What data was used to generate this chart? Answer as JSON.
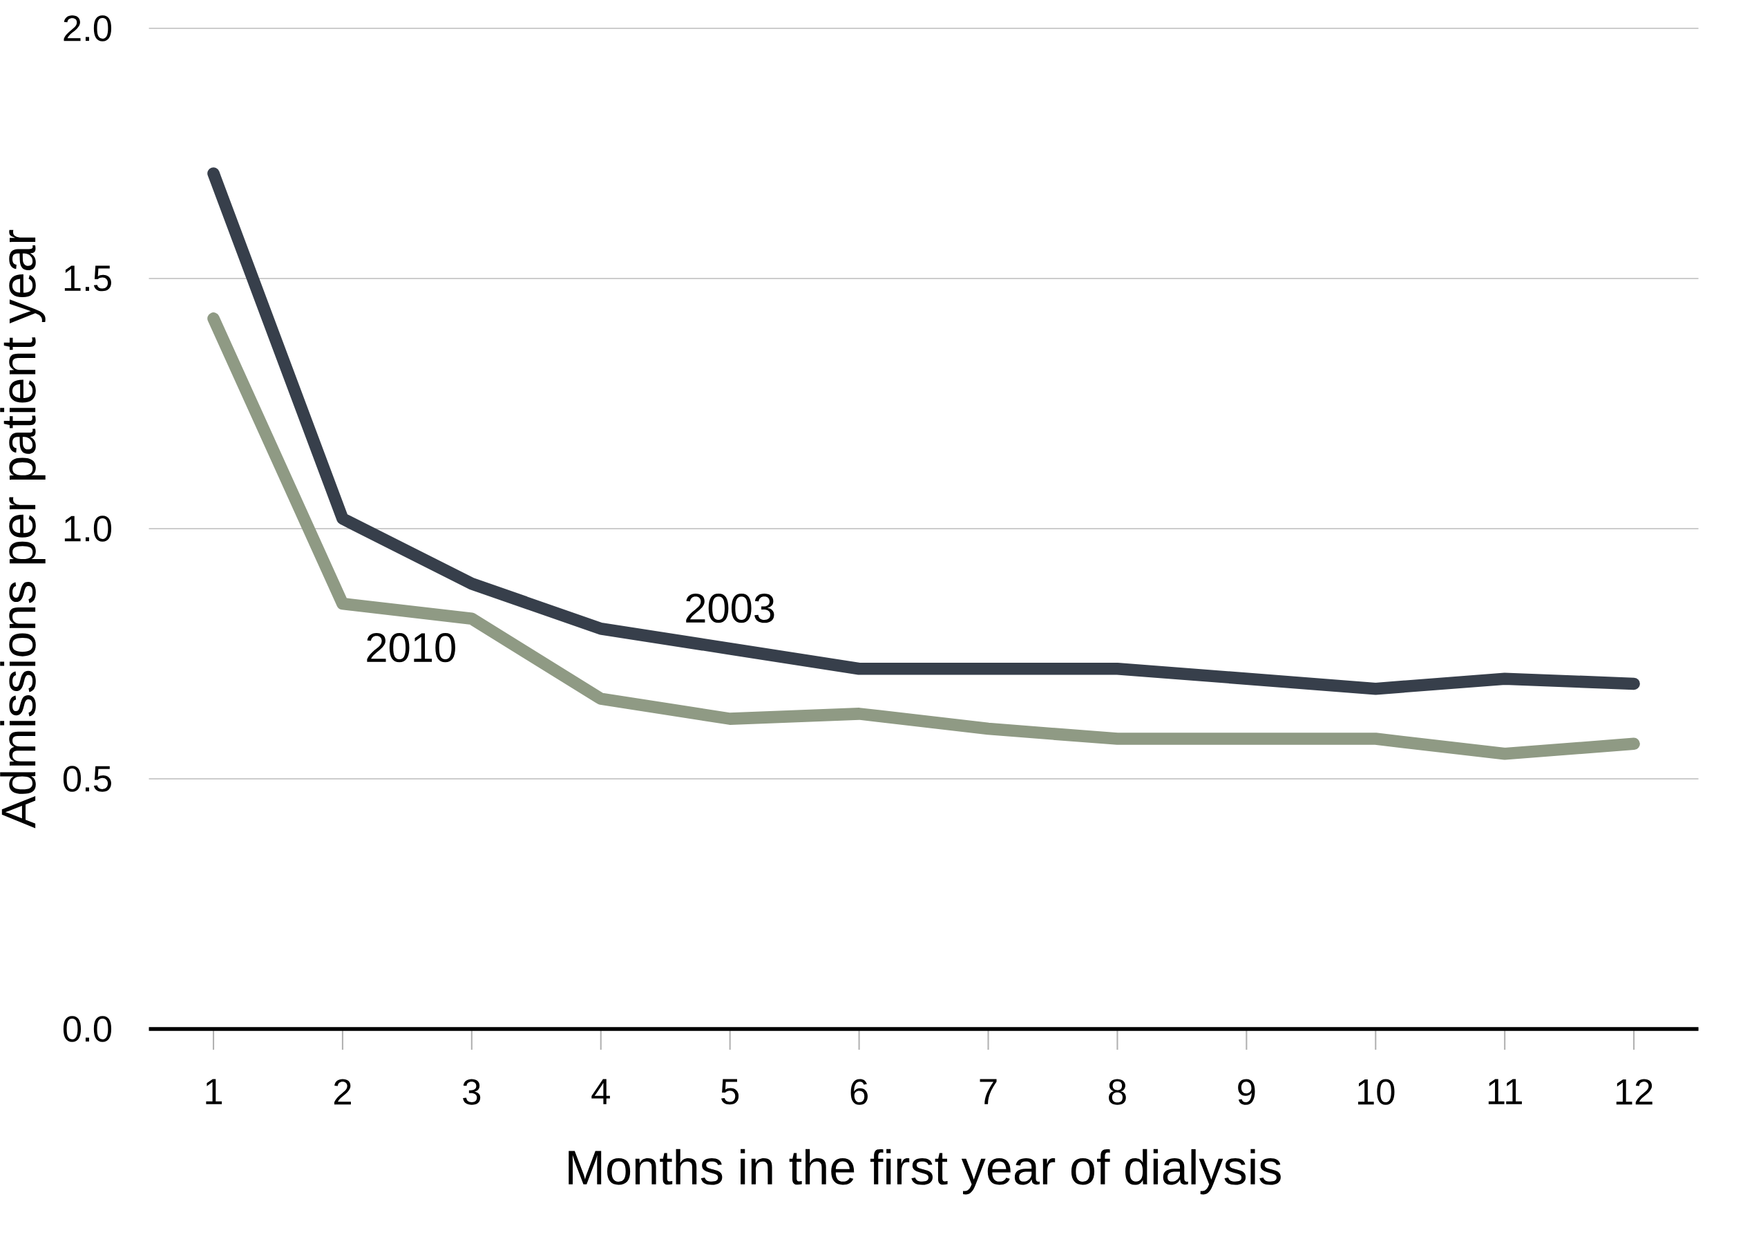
{
  "chart_data": {
    "type": "line",
    "xlabel": "Months in the first year of dialysis",
    "ylabel": "Admissions per patient year",
    "categories": [
      "1",
      "2",
      "3",
      "4",
      "5",
      "6",
      "7",
      "8",
      "9",
      "10",
      "11",
      "12"
    ],
    "series": [
      {
        "name": "2003",
        "color": "#373f4b",
        "values": [
          1.71,
          1.02,
          0.89,
          0.8,
          0.76,
          0.72,
          0.72,
          0.72,
          0.7,
          0.68,
          0.7,
          0.69
        ]
      },
      {
        "name": "2010",
        "color": "#8f9a84",
        "values": [
          1.42,
          0.85,
          0.82,
          0.66,
          0.62,
          0.63,
          0.6,
          0.58,
          0.58,
          0.58,
          0.55,
          0.57
        ]
      }
    ],
    "ylim": [
      0,
      2
    ],
    "yticks": [
      {
        "value": 0,
        "label": "0.0"
      },
      {
        "value": 0.5,
        "label": "0.5"
      },
      {
        "value": 1,
        "label": "1.0"
      },
      {
        "value": 1.5,
        "label": "1.5"
      },
      {
        "value": 2,
        "label": "2.0"
      }
    ],
    "grid": "y",
    "marker": "none",
    "line_style": "solid"
  }
}
